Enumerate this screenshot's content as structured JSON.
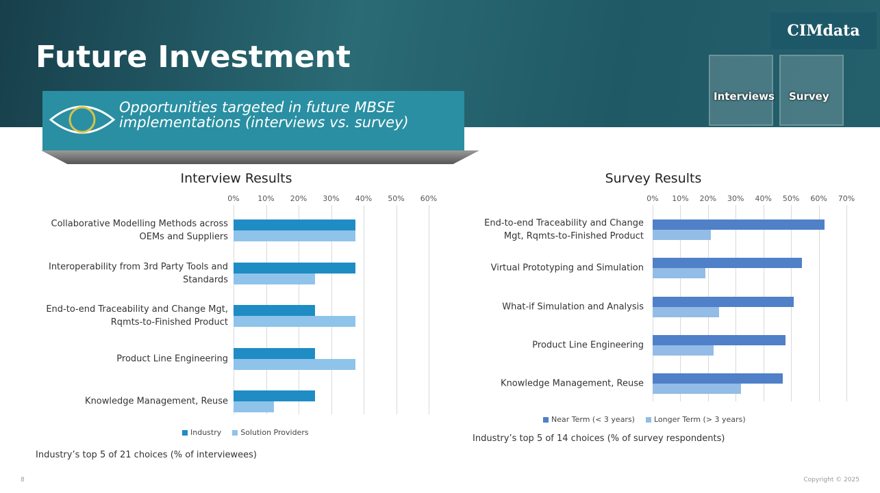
{
  "slide": {
    "title": "Future Investment",
    "subtitle": "Opportunities targeted in future MBSE implementations (interviews vs. survey)",
    "logo": "CIMdata",
    "icons": [
      "Interviews",
      "Survey"
    ],
    "page_number": "8",
    "copyright": "Copyright © 2025"
  },
  "chart_data": [
    {
      "type": "bar",
      "orientation": "horizontal",
      "title": "Interview Results",
      "categories": [
        "Collaborative Modelling Methods across OEMs and Suppliers",
        "Interoperability from 3rd Party Tools and Standards",
        "End-to-end Traceability and Change Mgt, Rqmts-to-Finished Product",
        "Product Line Engineering",
        "Knowledge Management, Reuse"
      ],
      "series": [
        {
          "name": "Industry",
          "color": "#1f8cc4",
          "values": [
            37.5,
            37.5,
            25,
            25,
            25
          ]
        },
        {
          "name": "Solution Providers",
          "color": "#8fc3ea",
          "values": [
            37.5,
            25,
            37.5,
            37.5,
            12.5
          ]
        }
      ],
      "xlim": [
        0,
        60
      ],
      "xticks": [
        {
          "value": 0,
          "label": "0%"
        },
        {
          "value": 10,
          "label": "10%"
        },
        {
          "value": 20,
          "label": "20%"
        },
        {
          "value": 30,
          "label": "30%"
        },
        {
          "value": 40,
          "label": "40%"
        },
        {
          "value": 50,
          "label": "50%"
        },
        {
          "value": 60,
          "label": "60%"
        }
      ],
      "grid": true,
      "legend": "bottom",
      "note": "Industry’s top 5 of 21 choices (% of interviewees)"
    },
    {
      "type": "bar",
      "orientation": "horizontal",
      "title": "Survey Results",
      "categories": [
        "End-to-end Traceability and Change Mgt, Rqmts-to-Finished Product",
        "Virtual Prototyping and Simulation",
        "What-if Simulation and Analysis",
        "Product Line Engineering",
        "Knowledge Management, Reuse"
      ],
      "series": [
        {
          "name": "Near Term (< 3 years)",
          "color": "#4f80c8",
          "values": [
            62,
            54,
            51,
            48,
            47
          ]
        },
        {
          "name": "Longer Term (> 3 years)",
          "color": "#93bce6",
          "values": [
            21,
            19,
            24,
            22,
            32
          ]
        }
      ],
      "xlim": [
        0,
        70
      ],
      "xticks": [
        {
          "value": 0,
          "label": "0%"
        },
        {
          "value": 10,
          "label": "10%"
        },
        {
          "value": 20,
          "label": "20%"
        },
        {
          "value": 30,
          "label": "30%"
        },
        {
          "value": 40,
          "label": "40%"
        },
        {
          "value": 50,
          "label": "50%"
        },
        {
          "value": 60,
          "label": "60%"
        },
        {
          "value": 70,
          "label": "70%"
        }
      ],
      "grid": true,
      "legend": "bottom",
      "note": "Industry’s top 5 of 14 choices (% of survey respondents)"
    }
  ]
}
